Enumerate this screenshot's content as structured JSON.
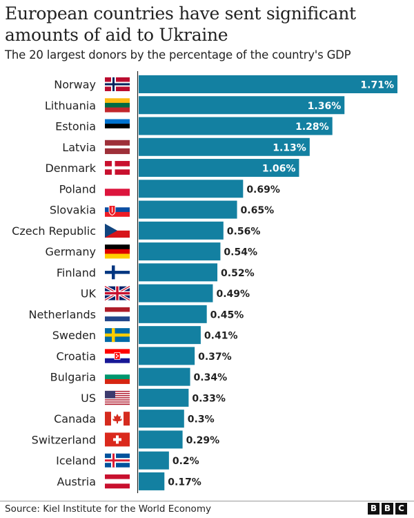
{
  "chart_data": {
    "type": "bar",
    "orientation": "horizontal",
    "title": "European countries have sent significant amounts of aid to Ukraine",
    "subtitle": "The 20 largest donors by the percentage of the country's GDP",
    "categories": [
      "Norway",
      "Lithuania",
      "Estonia",
      "Latvia",
      "Denmark",
      "Poland",
      "Slovakia",
      "Czech Republic",
      "Germany",
      "Finland",
      "UK",
      "Netherlands",
      "Sweden",
      "Croatia",
      "Bulgaria",
      "US",
      "Canada",
      "Switzerland",
      "Iceland",
      "Austria"
    ],
    "values": [
      1.71,
      1.36,
      1.28,
      1.13,
      1.06,
      0.69,
      0.65,
      0.56,
      0.54,
      0.52,
      0.49,
      0.45,
      0.41,
      0.37,
      0.34,
      0.33,
      0.3,
      0.29,
      0.2,
      0.17
    ],
    "data_labels": [
      "1.71%",
      "1.36%",
      "1.28%",
      "1.13%",
      "1.06%",
      "0.69%",
      "0.65%",
      "0.56%",
      "0.54%",
      "0.52%",
      "0.49%",
      "0.45%",
      "0.41%",
      "0.37%",
      "0.34%",
      "0.33%",
      "0.3%",
      "0.29%",
      "0.2%",
      "0.17%"
    ],
    "flags": [
      "norway-flag-icon",
      "lithuania-flag-icon",
      "estonia-flag-icon",
      "latvia-flag-icon",
      "denmark-flag-icon",
      "poland-flag-icon",
      "slovakia-flag-icon",
      "czech-flag-icon",
      "germany-flag-icon",
      "finland-flag-icon",
      "uk-flag-icon",
      "netherlands-flag-icon",
      "sweden-flag-icon",
      "croatia-flag-icon",
      "bulgaria-flag-icon",
      "us-flag-icon",
      "canada-flag-icon",
      "switzerland-flag-icon",
      "iceland-flag-icon",
      "austria-flag-icon"
    ],
    "unit": "%",
    "xlim": [
      0,
      1.71
    ],
    "grid": false,
    "legend": "none",
    "bar_color": "#1380a1"
  },
  "footer": {
    "source": "Source: Kiel Institute for the World Economy",
    "logo": [
      "B",
      "B",
      "C"
    ]
  }
}
